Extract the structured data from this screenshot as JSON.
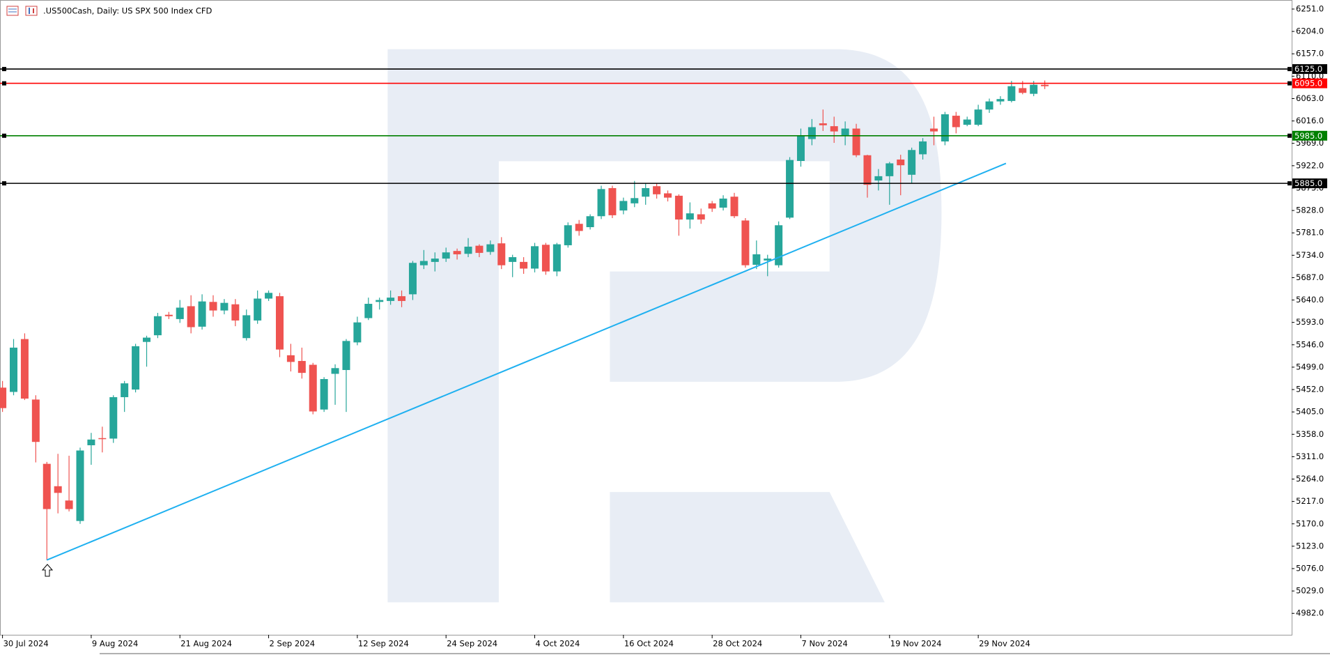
{
  "chart_data": {
    "type": "candlestick",
    "title": ".US500Cash, Daily:  US SPX 500 Index CFD",
    "categories": [
      "30 Jul 2024",
      null,
      null,
      null,
      null,
      null,
      null,
      null,
      "9 Aug 2024",
      null,
      null,
      null,
      null,
      null,
      null,
      null,
      "21 Aug 2024",
      null,
      null,
      null,
      null,
      null,
      null,
      null,
      "2 Sep 2024",
      null,
      null,
      null,
      null,
      null,
      null,
      null,
      "12 Sep 2024",
      null,
      null,
      null,
      null,
      null,
      null,
      null,
      "24 Sep 2024",
      null,
      null,
      null,
      null,
      null,
      null,
      null,
      "4 Oct 2024",
      null,
      null,
      null,
      null,
      null,
      null,
      null,
      "16 Oct 2024",
      null,
      null,
      null,
      null,
      null,
      null,
      null,
      "28 Oct 2024",
      null,
      null,
      null,
      null,
      null,
      null,
      null,
      "7 Nov 2024",
      null,
      null,
      null,
      null,
      null,
      null,
      null,
      "19 Nov 2024",
      null,
      null,
      null,
      null,
      null,
      null,
      null,
      "29 Nov 2024",
      null,
      null,
      null,
      null,
      null,
      null
    ],
    "open": [
      5456,
      5447,
      5558,
      5431,
      5296,
      5249,
      5219,
      5176,
      5335,
      5350,
      5349,
      5436,
      5452,
      5552,
      5566,
      5609,
      5600,
      5627,
      5584,
      5636,
      5618,
      5631,
      5560,
      5597,
      5643,
      5648,
      5524,
      5512,
      5504,
      5410,
      5485,
      5493,
      5551,
      5602,
      5636,
      5638,
      5648,
      5652,
      5713,
      5720,
      5727,
      5743,
      5737,
      5754,
      5741,
      5759,
      5720,
      5720,
      5706,
      5756,
      5700,
      5755,
      5800,
      5793,
      5816,
      5875,
      5828,
      5843,
      5857,
      5879,
      5864,
      5859,
      5809,
      5820,
      5843,
      5834,
      5857,
      5807,
      5714,
      5723,
      5713,
      5813,
      5932,
      5978,
      6011,
      6005,
      5985,
      6000,
      5944,
      5891,
      5900,
      5935,
      5903,
      5946,
      6000,
      5973,
      6027,
      6008,
      6008,
      6040,
      6057,
      6058,
      6085,
      6073,
      6092
    ],
    "high": [
      5470,
      5558,
      5570,
      5440,
      5300,
      5317,
      5313,
      5330,
      5361,
      5374,
      5440,
      5470,
      5548,
      5565,
      5613,
      5615,
      5640,
      5650,
      5652,
      5650,
      5642,
      5642,
      5620,
      5660,
      5660,
      5655,
      5548,
      5540,
      5508,
      5478,
      5505,
      5558,
      5605,
      5645,
      5645,
      5660,
      5660,
      5722,
      5745,
      5740,
      5750,
      5748,
      5770,
      5757,
      5765,
      5772,
      5735,
      5730,
      5760,
      5760,
      5760,
      5803,
      5808,
      5820,
      5880,
      5880,
      5855,
      5890,
      5885,
      5885,
      5870,
      5862,
      5845,
      5832,
      5848,
      5860,
      5865,
      5812,
      5765,
      5735,
      5805,
      5940,
      6000,
      6020,
      6040,
      6025,
      6015,
      6010,
      5945,
      5915,
      5930,
      5945,
      5960,
      5980,
      6025,
      6035,
      6035,
      6025,
      6050,
      6063,
      6068,
      6100,
      6100,
      6100,
      6101
    ],
    "low": [
      5405,
      5440,
      5430,
      5299,
      5094,
      5192,
      5196,
      5170,
      5294,
      5320,
      5340,
      5405,
      5446,
      5500,
      5560,
      5600,
      5592,
      5570,
      5578,
      5605,
      5610,
      5585,
      5555,
      5590,
      5638,
      5520,
      5490,
      5475,
      5400,
      5405,
      5420,
      5405,
      5545,
      5598,
      5620,
      5630,
      5625,
      5640,
      5705,
      5700,
      5720,
      5725,
      5730,
      5730,
      5735,
      5705,
      5688,
      5695,
      5698,
      5693,
      5690,
      5750,
      5775,
      5788,
      5810,
      5812,
      5820,
      5835,
      5840,
      5853,
      5847,
      5775,
      5790,
      5800,
      5825,
      5828,
      5812,
      5708,
      5705,
      5690,
      5708,
      5810,
      5920,
      5965,
      5995,
      5970,
      5965,
      5940,
      5855,
      5870,
      5840,
      5860,
      5885,
      5935,
      5965,
      5965,
      5990,
      6005,
      6005,
      6033,
      6050,
      6055,
      6072,
      6068,
      6083
    ],
    "close": [
      5413,
      5540,
      5433,
      5342,
      5201,
      5235,
      5201,
      5324,
      5347,
      5348,
      5436,
      5465,
      5543,
      5561,
      5606,
      5606,
      5624,
      5583,
      5637,
      5618,
      5634,
      5597,
      5608,
      5643,
      5655,
      5536,
      5510,
      5487,
      5406,
      5474,
      5497,
      5554,
      5593,
      5632,
      5640,
      5645,
      5638,
      5718,
      5722,
      5727,
      5740,
      5736,
      5752,
      5739,
      5757,
      5713,
      5730,
      5706,
      5753,
      5700,
      5757,
      5797,
      5785,
      5816,
      5873,
      5818,
      5848,
      5854,
      5875,
      5862,
      5855,
      5809,
      5822,
      5809,
      5832,
      5853,
      5816,
      5713,
      5736,
      5727,
      5797,
      5934,
      5985,
      6003,
      6007,
      5994,
      6000,
      5944,
      5882,
      5900,
      5927,
      5923,
      5955,
      5973,
      5994,
      6030,
      6003,
      6019,
      6040,
      6057,
      6062,
      6089,
      6075,
      6092,
      6089
    ],
    "up_color": "#26a69a",
    "down_color": "#ef5350",
    "ylim": [
      4937,
      6270
    ],
    "yticks": [
      {
        "value": 6251,
        "label": "6251.0"
      },
      {
        "value": 6204,
        "label": "6204.0"
      },
      {
        "value": 6157,
        "label": "6157.0"
      },
      {
        "value": 6110,
        "label": "6110.0"
      },
      {
        "value": 6063,
        "label": "6063.0"
      },
      {
        "value": 6016,
        "label": "6016.0"
      },
      {
        "value": 5969,
        "label": "5969.0"
      },
      {
        "value": 5922,
        "label": "5922.0"
      },
      {
        "value": 5875,
        "label": "5875.0"
      },
      {
        "value": 5828,
        "label": "5828.0"
      },
      {
        "value": 5781,
        "label": "5781.0"
      },
      {
        "value": 5734,
        "label": "5734.0"
      },
      {
        "value": 5687,
        "label": "5687.0"
      },
      {
        "value": 5640,
        "label": "5640.0"
      },
      {
        "value": 5593,
        "label": "5593.0"
      },
      {
        "value": 5546,
        "label": "5546.0"
      },
      {
        "value": 5499,
        "label": "5499.0"
      },
      {
        "value": 5452,
        "label": "5452.0"
      },
      {
        "value": 5405,
        "label": "5405.0"
      },
      {
        "value": 5358,
        "label": "5358.0"
      },
      {
        "value": 5311,
        "label": "5311.0"
      },
      {
        "value": 5264,
        "label": "5264.0"
      },
      {
        "value": 5217,
        "label": "5217.0"
      },
      {
        "value": 5170,
        "label": "5170.0"
      },
      {
        "value": 5123,
        "label": "5123.0"
      },
      {
        "value": 5076,
        "label": "5076.0"
      },
      {
        "value": 5029,
        "label": "5029.0"
      },
      {
        "value": 4982,
        "label": "4982.0"
      }
    ],
    "levels": [
      {
        "value": 6125,
        "label": "6125.0",
        "color": "#000000"
      },
      {
        "value": 6095,
        "label": "6095.0",
        "color": "#ff0000"
      },
      {
        "value": 5985,
        "label": "5985.0",
        "color": "#008000"
      },
      {
        "value": 5885,
        "label": "5885.0",
        "color": "#000000"
      }
    ],
    "trendline": {
      "x": [
        4,
        90.5
      ],
      "y": [
        5094,
        5927
      ],
      "color": "#1eb0f0"
    },
    "grid": false
  }
}
